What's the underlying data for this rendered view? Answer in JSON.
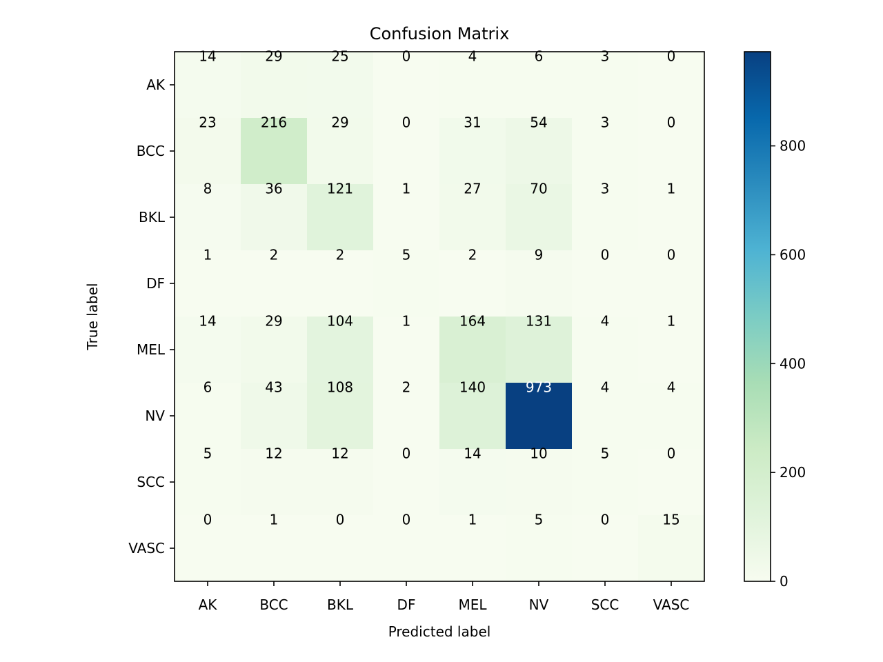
{
  "chart_data": {
    "type": "heatmap",
    "title": "Confusion Matrix",
    "xlabel": "Predicted label",
    "ylabel": "True label",
    "x_categories": [
      "AK",
      "BCC",
      "BKL",
      "DF",
      "MEL",
      "NV",
      "SCC",
      "VASC"
    ],
    "y_categories": [
      "AK",
      "BCC",
      "BKL",
      "DF",
      "MEL",
      "NV",
      "SCC",
      "VASC"
    ],
    "values": [
      [
        14,
        29,
        25,
        0,
        4,
        6,
        3,
        0
      ],
      [
        23,
        216,
        29,
        0,
        31,
        54,
        3,
        0
      ],
      [
        8,
        36,
        121,
        1,
        27,
        70,
        3,
        1
      ],
      [
        1,
        2,
        2,
        5,
        2,
        9,
        0,
        0
      ],
      [
        14,
        29,
        104,
        1,
        164,
        131,
        4,
        1
      ],
      [
        6,
        43,
        108,
        2,
        140,
        973,
        4,
        4
      ],
      [
        5,
        12,
        12,
        0,
        14,
        10,
        5,
        0
      ],
      [
        0,
        1,
        0,
        0,
        1,
        5,
        0,
        15
      ]
    ],
    "colormap": "GnBu",
    "colorbar": {
      "range": [
        0,
        973
      ],
      "ticks": [
        0,
        200,
        400,
        600,
        800
      ],
      "tick_labels": [
        "0",
        "200",
        "400",
        "600",
        "800"
      ]
    },
    "colorbar_stops": [
      "#f7fcf0",
      "#e0f3db",
      "#ccebc5",
      "#a8ddb5",
      "#7bccc4",
      "#4eb3d3",
      "#2b8cbe",
      "#0868ac",
      "#084081"
    ],
    "text_colors": {
      "light": "#ffffff",
      "dark": "#000000"
    }
  }
}
